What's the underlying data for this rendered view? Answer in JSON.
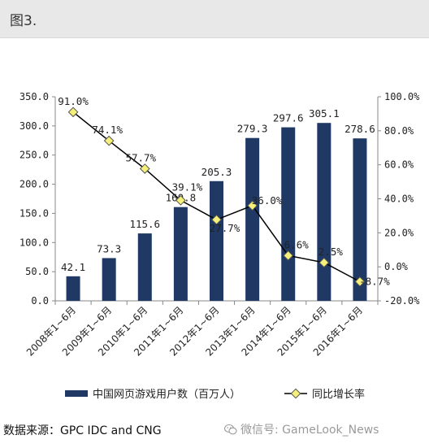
{
  "header": {
    "title": "图3."
  },
  "chart_data": {
    "type": "bar",
    "categories": [
      "2008年1~6月",
      "2009年1~6月",
      "2010年1~6月",
      "2011年1~6月",
      "2012年1~6月",
      "2013年1~6月",
      "2014年1~6月",
      "2015年1~6月",
      "2016年1~6月"
    ],
    "series": [
      {
        "name": "中国网页游戏用户数（百万人）",
        "type": "bar",
        "axis": "left",
        "values": [
          42.1,
          73.3,
          115.6,
          160.8,
          205.3,
          279.3,
          297.6,
          305.1,
          278.6
        ],
        "labels": [
          "42.1",
          "73.3",
          "115.6",
          "160.8",
          "205.3",
          "279.3",
          "297.6",
          "305.1",
          "278.6"
        ]
      },
      {
        "name": "同比增长率",
        "type": "line",
        "axis": "right",
        "values": [
          91.0,
          74.1,
          57.7,
          39.1,
          27.7,
          36.0,
          6.6,
          2.5,
          -8.7
        ],
        "labels": [
          "91.0%",
          "74.1%",
          "57.7%",
          "39.1%",
          "27.7%",
          "36.0%",
          "6.6%",
          "2.5%",
          "-8.7%"
        ]
      }
    ],
    "y_left": {
      "ylim": [
        0,
        350
      ],
      "ticks": [
        "0.0",
        "50.0",
        "100.0",
        "150.0",
        "200.0",
        "250.0",
        "300.0",
        "350.0"
      ]
    },
    "y_right": {
      "ylim": [
        -20,
        100
      ],
      "ticks": [
        "-20.0%",
        "0.0%",
        "20.0%",
        "40.0%",
        "60.0%",
        "80.0%",
        "100.0%"
      ]
    },
    "grid": false,
    "legend": "bottom",
    "colors": {
      "bar": "#1f3864",
      "line": "#000000",
      "marker_fill": "#f5f07a",
      "marker_stroke": "#555555"
    }
  },
  "footer": {
    "source": "数据来源：GPC IDC and CNG"
  },
  "watermark": {
    "icon": "wechat-icon",
    "text": "微信号: GameLook_News"
  }
}
